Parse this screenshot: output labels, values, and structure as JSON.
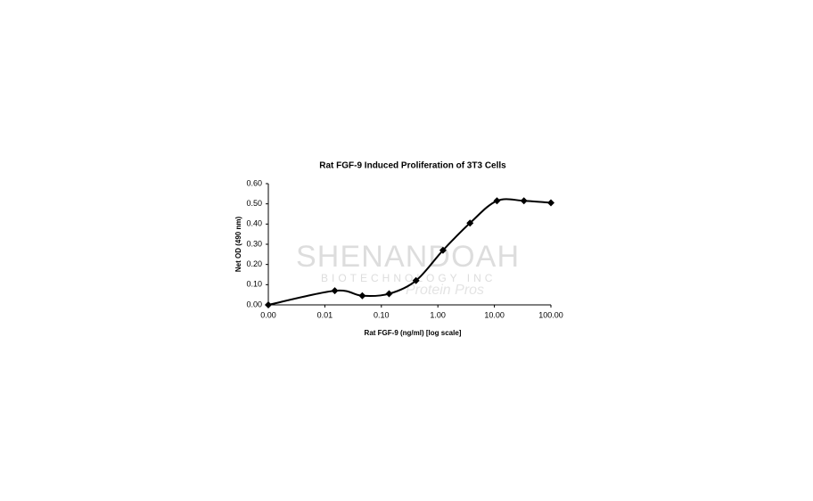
{
  "chart_data": {
    "type": "line",
    "title": "Rat FGF-9 Induced Proliferation of 3T3 Cells",
    "x_label": "Rat FGF-9 (ng/ml) [log scale]",
    "y_label": "Net OD (490 nm)",
    "watermark": {
      "name": "SHENANDOAH",
      "subtitle": "BIOTECHNOLOGY INC",
      "tagline": "Protein Pros"
    },
    "x_scale": "log",
    "x": [
      0.001,
      0.015,
      0.046,
      0.137,
      0.41,
      1.23,
      3.7,
      11.1,
      33.3,
      100
    ],
    "series": [
      {
        "color": "#000000",
        "values": [
          0,
          0.07,
          0.045,
          0.055,
          0.12,
          0.27,
          0.405,
          0.515,
          0.515,
          0.505
        ]
      }
    ],
    "xlim": [
      0.001,
      100
    ],
    "xticks": [
      {
        "value": 0.001,
        "label": "0.00"
      },
      {
        "value": 0.01,
        "label": "0.01"
      },
      {
        "value": 0.1,
        "label": "0.10"
      },
      {
        "value": 1,
        "label": "1.00"
      },
      {
        "value": 10,
        "label": "10.00"
      },
      {
        "value": 100,
        "label": "100.00"
      }
    ],
    "ylim": [
      0,
      0.6
    ],
    "yticks": [
      {
        "value": 0,
        "label": "0.00"
      },
      {
        "value": 0.1,
        "label": "0.10"
      },
      {
        "value": 0.2,
        "label": "0.20"
      },
      {
        "value": 0.3,
        "label": "0.30"
      },
      {
        "value": 0.4,
        "label": "0.40"
      },
      {
        "value": 0.5,
        "label": "0.50"
      },
      {
        "value": 0.6,
        "label": "0.60"
      }
    ],
    "grid": false
  }
}
